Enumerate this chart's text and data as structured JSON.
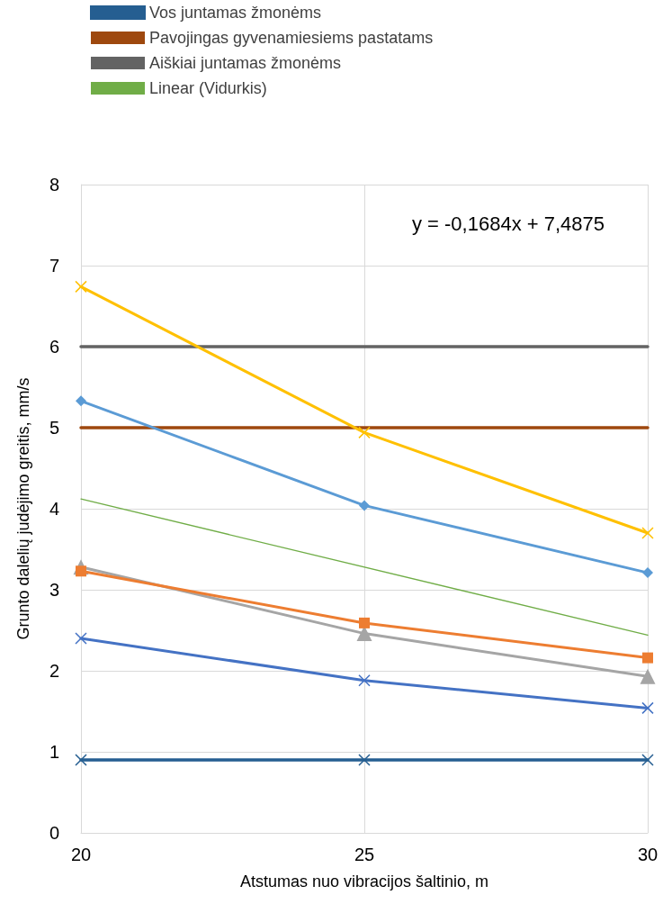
{
  "chart_data": {
    "type": "line",
    "xlabel": "Atstumas nuo vibracijos šaltinio, m",
    "ylabel": "Grunto dalelių judėjimo greitis, mm/s",
    "x": [
      20,
      25,
      30
    ],
    "xlim": [
      20,
      30
    ],
    "xticks": [
      20,
      25,
      30
    ],
    "ylim": [
      0,
      8
    ],
    "yticks": [
      0,
      1,
      2,
      3,
      4,
      5,
      6,
      7,
      8
    ],
    "grid": true,
    "legend": "top",
    "annotations": [
      "y = -0,1684x + 7,4875"
    ],
    "series": [
      {
        "name": "Vos juntamas žmonėms",
        "color": "#255e91",
        "marker": "cross",
        "values": [
          0.9,
          0.9,
          0.9
        ]
      },
      {
        "name": "Pavojingas gyvenamiesiems pastatams",
        "color": "#9e480e",
        "marker": "none",
        "values": [
          5,
          5,
          5
        ]
      },
      {
        "name": "Aiškiai juntamas žmonėms",
        "color": "#636363",
        "marker": "none",
        "values": [
          6,
          6,
          6
        ]
      },
      {
        "name": "Linear (Vidurkis)",
        "color": "#70ad47",
        "marker": "none",
        "values": [
          4.12,
          null,
          2.44
        ]
      },
      {
        "color": "#ffc000",
        "marker": "cross",
        "values": [
          6.74,
          4.94,
          3.7
        ]
      },
      {
        "color": "#5b9bd5",
        "marker": "diamond",
        "values": [
          5.33,
          4.04,
          3.21
        ]
      },
      {
        "color": "#a5a5a5",
        "marker": "triangle",
        "values": [
          3.28,
          2.46,
          1.93
        ]
      },
      {
        "color": "#ed7d31",
        "marker": "square",
        "values": [
          3.23,
          2.59,
          2.16
        ]
      },
      {
        "color": "#4472c4",
        "marker": "cross",
        "values": [
          2.4,
          1.88,
          1.54
        ]
      }
    ]
  }
}
